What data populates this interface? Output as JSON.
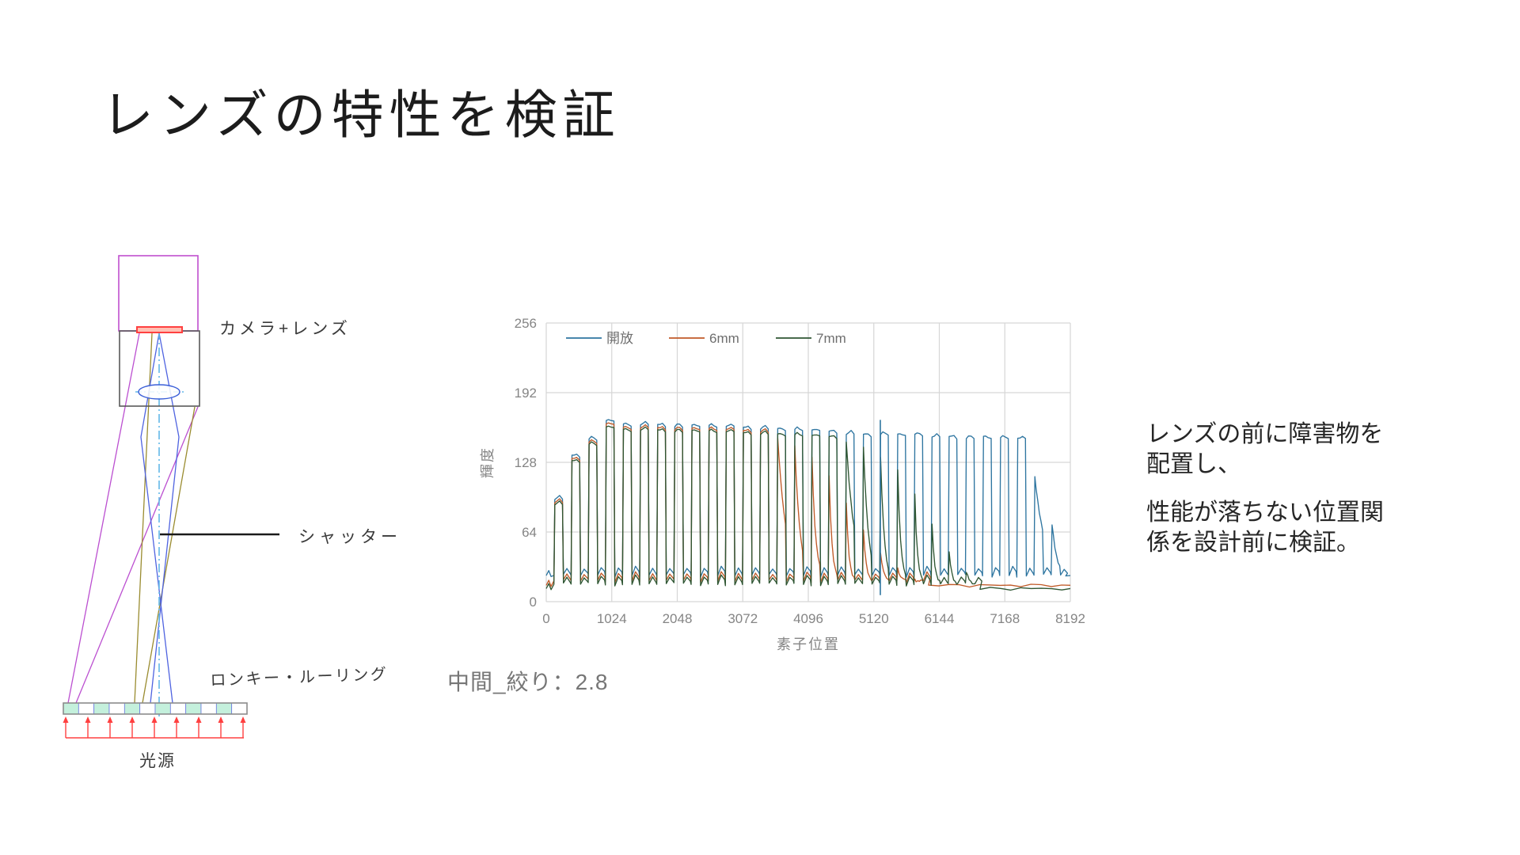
{
  "slide": {
    "title": "レンズの特性を検証",
    "caption": "中間_絞り：2.8",
    "desc1": "レンズの前に障害物を配置し、",
    "desc2": "性能が落ちない位置関係を設計前に検証。"
  },
  "diagram": {
    "camera_label": "カメラ+レンズ",
    "shutter_label": "シャッター",
    "ruling_label": "ロンキー・ルーリング",
    "light_label": "光源",
    "colors": {
      "camera_box": "#bf4fcf",
      "lens_housing": "#595959",
      "sensor": "#ff4040",
      "sensor_fill": "#ffc0b4",
      "lens": "#3b5fd8",
      "optical_axis": "#62b8e8",
      "ray_magenta": "#bb4fd0",
      "ray_olive": "#9a8c30",
      "ray_blue": "#4f63e0",
      "shutter": "#1a1a1a",
      "ruling_cell": "#c4f0dc",
      "ruling_divider": "#6a78e0",
      "ruling_border": "#8c8c8c",
      "light_arrows": "#ff4040"
    }
  },
  "chart_data": {
    "type": "line",
    "title": "",
    "xlabel": "素子位置",
    "ylabel": "輝度",
    "xlim": [
      0,
      8192
    ],
    "ylim": [
      0,
      256
    ],
    "xticks": [
      0,
      1024,
      2048,
      3072,
      4096,
      5120,
      6144,
      7168,
      8192
    ],
    "yticks": [
      0,
      64,
      128,
      192,
      256
    ],
    "grid": true,
    "legend_position": "top-left-inside",
    "axis_color": "#bfbfbf",
    "grid_color": "#d6d6d6",
    "tick_color": "#858585",
    "legend_text_color": "#6e6e6e",
    "pulse_lead_start": 120,
    "pulse_period": 268,
    "pulse_rise": 14,
    "pulse_high_width": 120,
    "pulse_fall": 14,
    "spike": {
      "x": 5222,
      "v0": 6,
      "v1": 167
    },
    "series": [
      {
        "name": "開放",
        "color": "#2e75a0",
        "valley": 24,
        "baseline": 24,
        "tops": [
          95,
          135,
          150,
          166,
          162,
          163,
          163,
          162,
          162,
          161,
          161,
          160,
          160,
          159,
          158,
          157,
          156,
          155,
          154,
          154,
          153,
          153,
          152,
          152,
          151,
          151,
          150,
          150,
          115,
          72
        ],
        "tails": [
          0,
          0,
          0,
          0,
          0,
          0,
          0,
          0,
          0,
          0,
          0,
          0,
          0,
          0,
          0,
          0,
          0,
          0,
          0,
          0,
          0,
          0,
          0,
          0,
          0,
          0,
          0,
          0,
          0.25,
          0.55
        ]
      },
      {
        "name": "6mm",
        "color": "#c05a28",
        "valley": 19,
        "baseline": 15,
        "tops": [
          92,
          132,
          147,
          163,
          159,
          160,
          160,
          159,
          159,
          158,
          158,
          157,
          157,
          150,
          143,
          132,
          115,
          92,
          66,
          45,
          30,
          20
        ],
        "tails": [
          0,
          0,
          0,
          0,
          0,
          0,
          0,
          0,
          0,
          0,
          0,
          0,
          0,
          0.3,
          0.5,
          0.7,
          0.9,
          1,
          1,
          1,
          1,
          1
        ]
      },
      {
        "name": "7mm",
        "color": "#2f5633",
        "valley": 16,
        "baseline": 12,
        "tops": [
          90,
          130,
          145,
          160,
          157,
          158,
          158,
          157,
          157,
          156,
          156,
          155,
          155,
          154,
          153,
          152,
          151,
          148,
          142,
          133,
          120,
          98,
          72,
          46,
          28
        ],
        "tails": [
          0,
          0,
          0,
          0,
          0,
          0,
          0,
          0,
          0,
          0,
          0,
          0,
          0,
          0,
          0,
          0,
          0,
          0.3,
          0.5,
          0.7,
          0.85,
          1,
          1,
          1,
          1
        ]
      }
    ]
  }
}
